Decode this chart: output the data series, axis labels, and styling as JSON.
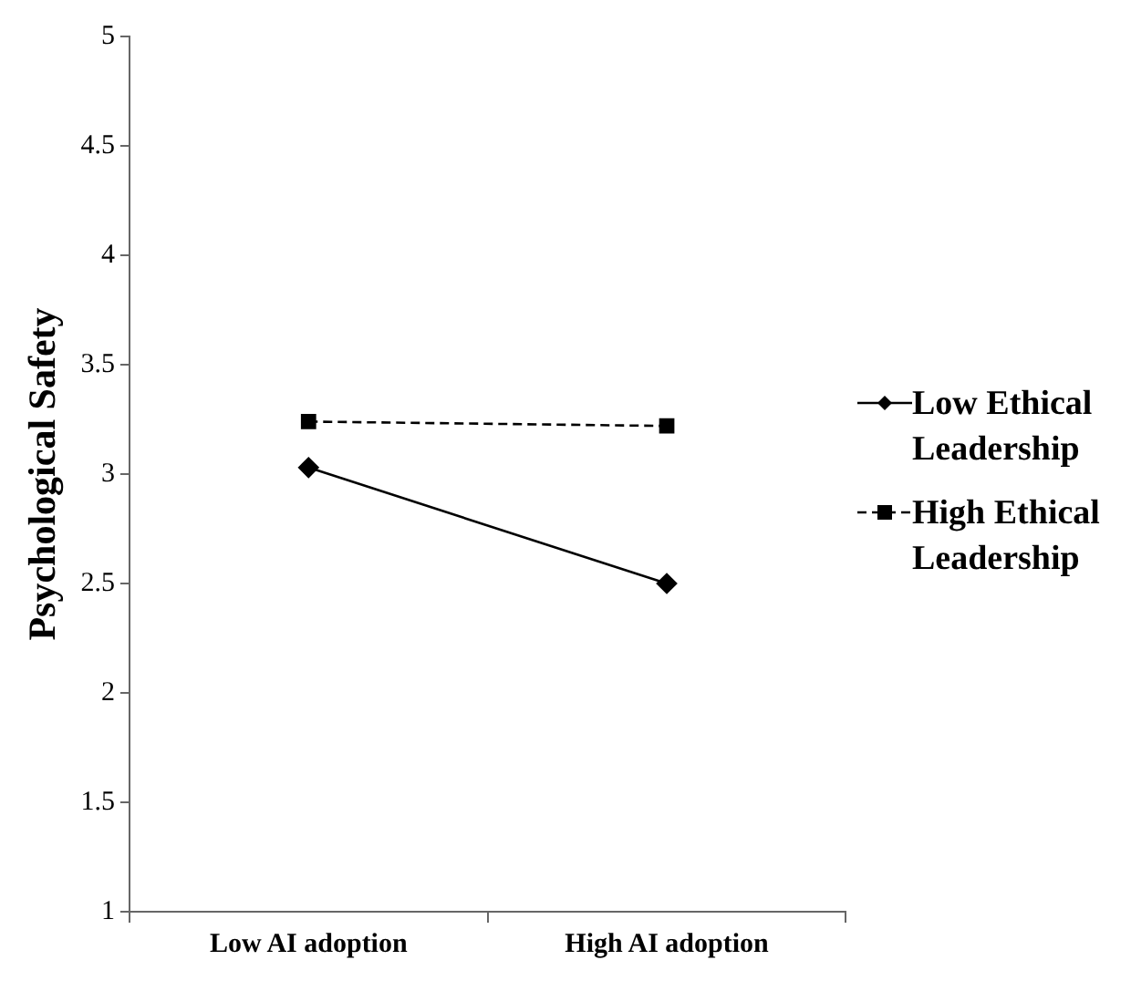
{
  "chart_data": {
    "type": "line",
    "ylabel": "Psychological Safety",
    "categories": [
      "Low AI adoption",
      "High AI adoption"
    ],
    "series": [
      {
        "name": "Low Ethical Leadership",
        "color": "#000000",
        "values": [
          3.03,
          2.5
        ],
        "marker": "diamond",
        "line_style": "solid"
      },
      {
        "name": "High Ethical Leadership",
        "color": "#000000",
        "values": [
          3.24,
          3.22
        ],
        "marker": "square",
        "line_style": "dashed"
      }
    ],
    "ylim": [
      1,
      5
    ],
    "yticks": [
      1,
      1.5,
      2,
      2.5,
      3,
      3.5,
      4,
      4.5,
      5
    ],
    "grid": false,
    "legend": "right"
  }
}
